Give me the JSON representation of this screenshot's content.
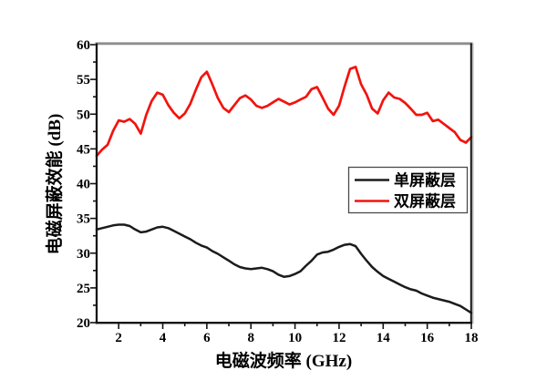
{
  "figure": {
    "background": "#ffffff",
    "plot_border_color": "#1a1a1a",
    "top_border_color": "#8d8d8d",
    "legend_border_color": "#4a4a4a"
  },
  "legend": {
    "entries": [
      {
        "label": "单屏蔽层",
        "color": "#1b1b1b"
      },
      {
        "label": "双屏蔽层",
        "color": "#f2130e"
      }
    ]
  },
  "chart_data": {
    "type": "line",
    "title": "",
    "xlabel": "电磁波频率 (GHz)",
    "ylabel": "电磁屏蔽效能 (dB)",
    "xlim": [
      1,
      18
    ],
    "ylim": [
      20,
      60
    ],
    "grid": false,
    "legend_position": "right-middle-inside",
    "x_major_ticks": [
      2,
      4,
      6,
      8,
      10,
      12,
      14,
      16,
      18
    ],
    "x_minor_ticks": [
      3,
      5,
      7,
      9,
      11,
      13,
      15,
      17
    ],
    "y_major_ticks": [
      20,
      25,
      30,
      35,
      40,
      45,
      50,
      55,
      60
    ],
    "y_minor_ticks": [
      22.5,
      27.5,
      32.5,
      37.5,
      42.5,
      47.5,
      52.5,
      57.5
    ],
    "x": [
      1,
      1.25,
      1.5,
      1.75,
      2,
      2.25,
      2.5,
      2.75,
      3,
      3.25,
      3.5,
      3.75,
      4,
      4.25,
      4.5,
      4.75,
      5,
      5.25,
      5.5,
      5.75,
      6,
      6.25,
      6.5,
      6.75,
      7,
      7.25,
      7.5,
      7.75,
      8,
      8.25,
      8.5,
      8.75,
      9,
      9.25,
      9.5,
      9.75,
      10,
      10.25,
      10.5,
      10.75,
      11,
      11.25,
      11.5,
      11.75,
      12,
      12.25,
      12.5,
      12.75,
      13,
      13.25,
      13.5,
      13.75,
      14,
      14.25,
      14.5,
      14.75,
      15,
      15.25,
      15.5,
      15.75,
      16,
      16.25,
      16.5,
      16.75,
      17,
      17.25,
      17.5,
      17.75,
      18
    ],
    "series": [
      {
        "id": "single",
        "name": "单屏蔽层",
        "color": "#1b1b1b",
        "values": [
          33.4,
          33.6,
          33.8,
          34.0,
          34.1,
          34.1,
          33.9,
          33.4,
          33.0,
          33.1,
          33.4,
          33.7,
          33.8,
          33.6,
          33.2,
          32.8,
          32.4,
          32.0,
          31.5,
          31.1,
          30.8,
          30.3,
          29.9,
          29.4,
          28.9,
          28.4,
          28.0,
          27.8,
          27.7,
          27.8,
          27.9,
          27.7,
          27.4,
          26.9,
          26.6,
          26.7,
          27.0,
          27.4,
          28.2,
          28.9,
          29.8,
          30.1,
          30.2,
          30.5,
          30.9,
          31.2,
          31.3,
          31.0,
          29.9,
          28.9,
          28.0,
          27.3,
          26.7,
          26.3,
          25.9,
          25.5,
          25.1,
          24.8,
          24.6,
          24.2,
          23.9,
          23.6,
          23.4,
          23.2,
          23.0,
          22.7,
          22.4,
          21.9,
          21.4
        ]
      },
      {
        "id": "double",
        "name": "双屏蔽层",
        "color": "#f2130e",
        "values": [
          44.0,
          44.9,
          45.6,
          47.6,
          49.1,
          48.9,
          49.3,
          48.6,
          47.2,
          49.9,
          51.9,
          53.1,
          52.8,
          51.3,
          50.2,
          49.4,
          50.1,
          51.5,
          53.5,
          55.3,
          56.1,
          54.3,
          52.3,
          50.9,
          50.3,
          51.3,
          52.3,
          52.7,
          52.1,
          51.2,
          50.9,
          51.2,
          51.7,
          52.2,
          51.8,
          51.4,
          51.7,
          52.1,
          52.5,
          53.6,
          53.9,
          52.4,
          50.8,
          49.9,
          51.2,
          54.0,
          56.5,
          56.8,
          54.3,
          52.8,
          50.8,
          50.1,
          52.0,
          53.1,
          52.4,
          52.2,
          51.6,
          50.8,
          49.9,
          49.9,
          50.2,
          49.0,
          49.2,
          48.6,
          48.0,
          47.4,
          46.3,
          45.9,
          46.7
        ]
      }
    ]
  }
}
